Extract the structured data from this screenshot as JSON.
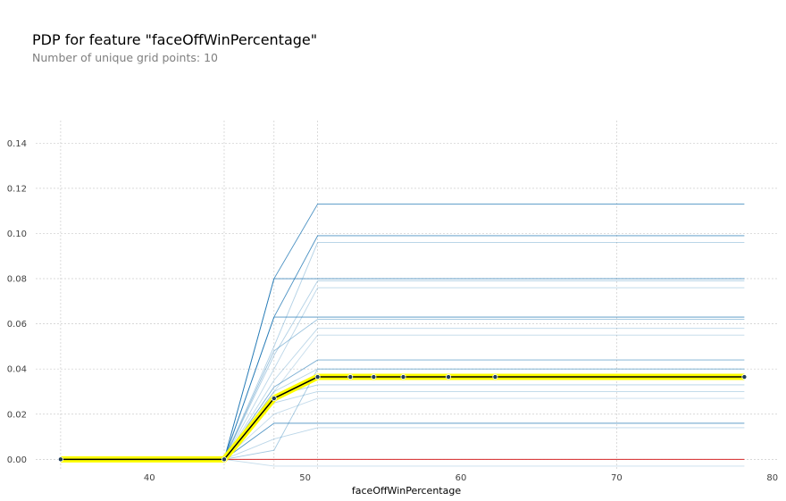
{
  "chart_data": {
    "type": "line",
    "title": "PDP for feature \"faceOffWinPercentage\"",
    "subtitle": "Number of unique grid points: 10",
    "xlabel": "faceOffWinPercentage",
    "ylabel": "",
    "xlim": [
      32.7,
      80.3
    ],
    "ylim": [
      -0.005,
      0.15
    ],
    "x_ticks": [
      40,
      50,
      60,
      70,
      80
    ],
    "y_ticks": [
      0.0,
      0.02,
      0.04,
      0.06,
      0.08,
      0.1,
      0.12,
      0.14
    ],
    "grid": true,
    "grid_x": [
      34.3,
      44.8,
      48.0,
      50.8,
      70.0
    ],
    "grid_points": [
      34.3,
      44.8,
      48.0,
      50.8,
      52.9,
      54.4,
      56.3,
      59.2,
      62.2,
      78.2
    ],
    "average": {
      "name": "average",
      "values": [
        0.0,
        0.0,
        0.027,
        0.0365,
        0.0365,
        0.0365,
        0.0365,
        0.0365,
        0.0365,
        0.0365
      ],
      "color": "#000000",
      "band_color": "#ffff00"
    },
    "ice_lines": [
      {
        "values": [
          0,
          0,
          0.08,
          0.113,
          0.113,
          0.113,
          0.113,
          0.113,
          0.113,
          0.113
        ],
        "color": "#1f77b4",
        "alpha": 0.8
      },
      {
        "values": [
          0,
          0,
          0.08,
          0.08,
          0.08,
          0.08,
          0.08,
          0.08,
          0.08,
          0.08
        ],
        "color": "#1f77b4",
        "alpha": 0.8
      },
      {
        "values": [
          0,
          0,
          0.063,
          0.099,
          0.099,
          0.099,
          0.099,
          0.099,
          0.099,
          0.099
        ],
        "color": "#1f77b4",
        "alpha": 0.8
      },
      {
        "values": [
          0,
          0,
          0.05,
          0.096,
          0.096,
          0.096,
          0.096,
          0.096,
          0.096,
          0.096
        ],
        "color": "#1f77b4",
        "alpha": 0.35
      },
      {
        "values": [
          0,
          0,
          0.063,
          0.063,
          0.063,
          0.063,
          0.063,
          0.063,
          0.063,
          0.063
        ],
        "color": "#1f77b4",
        "alpha": 0.8
      },
      {
        "values": [
          0,
          0,
          0.046,
          0.079,
          0.079,
          0.079,
          0.079,
          0.079,
          0.079,
          0.079
        ],
        "color": "#1f77b4",
        "alpha": 0.35
      },
      {
        "values": [
          0,
          0,
          0.04,
          0.076,
          0.076,
          0.076,
          0.076,
          0.076,
          0.076,
          0.076
        ],
        "color": "#1f77b4",
        "alpha": 0.3
      },
      {
        "values": [
          0,
          0,
          0.048,
          0.062,
          0.062,
          0.062,
          0.062,
          0.062,
          0.062,
          0.062
        ],
        "color": "#1f77b4",
        "alpha": 0.45
      },
      {
        "values": [
          0,
          0,
          0.035,
          0.058,
          0.058,
          0.058,
          0.058,
          0.058,
          0.058,
          0.058
        ],
        "color": "#1f77b4",
        "alpha": 0.3
      },
      {
        "values": [
          0,
          0,
          0.03,
          0.055,
          0.055,
          0.055,
          0.055,
          0.055,
          0.055,
          0.055
        ],
        "color": "#1f77b4",
        "alpha": 0.25
      },
      {
        "values": [
          0,
          0,
          0.032,
          0.044,
          0.044,
          0.044,
          0.044,
          0.044,
          0.044,
          0.044
        ],
        "color": "#1f77b4",
        "alpha": 0.6
      },
      {
        "values": [
          0,
          0,
          0.03,
          0.04,
          0.04,
          0.04,
          0.04,
          0.04,
          0.04,
          0.04
        ],
        "color": "#1f77b4",
        "alpha": 0.3
      },
      {
        "values": [
          0,
          0,
          0.028,
          0.033,
          0.033,
          0.033,
          0.033,
          0.033,
          0.033,
          0.033
        ],
        "color": "#1f77b4",
        "alpha": 0.35
      },
      {
        "values": [
          0,
          0,
          0.025,
          0.03,
          0.03,
          0.03,
          0.03,
          0.03,
          0.03,
          0.03
        ],
        "color": "#1f77b4",
        "alpha": 0.3
      },
      {
        "values": [
          0,
          0,
          0.02,
          0.027,
          0.027,
          0.027,
          0.027,
          0.027,
          0.027,
          0.027
        ],
        "color": "#1f77b4",
        "alpha": 0.25
      },
      {
        "values": [
          0,
          0,
          0.016,
          0.016,
          0.016,
          0.016,
          0.016,
          0.016,
          0.016,
          0.016
        ],
        "color": "#1f77b4",
        "alpha": 0.8
      },
      {
        "values": [
          0,
          0,
          0.009,
          0.014,
          0.014,
          0.014,
          0.014,
          0.014,
          0.014,
          0.014
        ],
        "color": "#1f77b4",
        "alpha": 0.3
      },
      {
        "values": [
          0,
          0,
          0.004,
          0.04,
          0.04,
          0.04,
          0.04,
          0.04,
          0.04,
          0.04
        ],
        "color": "#1f77b4",
        "alpha": 0.4
      },
      {
        "values": [
          0,
          0,
          -0.003,
          -0.003,
          -0.003,
          -0.003,
          -0.003,
          -0.003,
          -0.003,
          -0.003
        ],
        "color": "#1f77b4",
        "alpha": 0.25
      }
    ],
    "zero_line": {
      "value": 0,
      "color": "#d62728"
    }
  }
}
